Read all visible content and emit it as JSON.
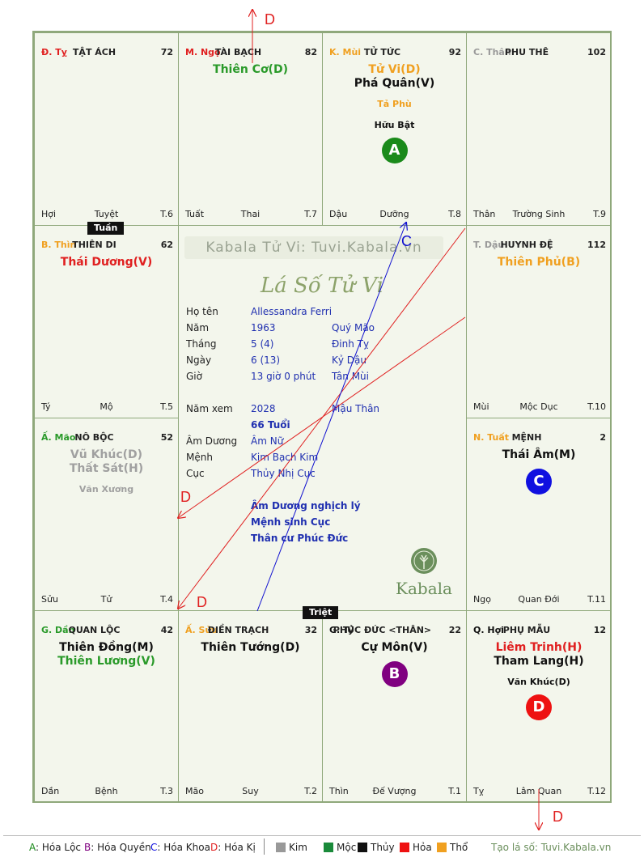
{
  "cells": {
    "ty": {
      "chi": "Đ. Tỵ",
      "chi_color": "#e02020",
      "name": "TẬT ÁCH",
      "num": "72",
      "stars": [],
      "minors": [],
      "bl": "Hợi",
      "bm": "Tuyệt",
      "br": "T.6"
    },
    "ngo": {
      "chi": "M. Ngọ",
      "chi_color": "#e02020",
      "name": "TÀI BẠCH",
      "num": "82",
      "stars": [
        {
          "text": "Thiên Cơ(D)",
          "color": "#2a9a2a"
        }
      ],
      "minors": [],
      "bl": "Tuất",
      "bm": "Thai",
      "br": "T.7"
    },
    "mui": {
      "chi": "K. Mùi",
      "chi_color": "#f0a020",
      "name": "TỬ TỨC",
      "num": "92",
      "stars": [
        {
          "text": "Tử Vi(D)",
          "color": "#f0a020"
        },
        {
          "text": "Phá Quân(V)",
          "color": "#111111"
        }
      ],
      "minors": [
        {
          "text": "Tả Phù",
          "color": "#f0a020"
        },
        {
          "text": "Hữu Bật",
          "color": "#111111"
        }
      ],
      "badge": {
        "text": "A",
        "color": "#1a8a1a"
      },
      "bl": "Dậu",
      "bm": "Dưỡng",
      "br": "T.8"
    },
    "than": {
      "chi": "C. Thân",
      "chi_color": "#999999",
      "name": "PHU THÊ",
      "num": "102",
      "stars": [],
      "minors": [],
      "bl": "Thân",
      "bm": "Trường Sinh",
      "br": "T.9"
    },
    "thin": {
      "chi": "B. Thìn",
      "chi_color": "#f0a020",
      "name": "THIÊN DI",
      "num": "62",
      "stars": [
        {
          "text": "Thái Dương(V)",
          "color": "#e02020"
        }
      ],
      "minors": [],
      "bl": "Tý",
      "bm": "Mộ",
      "br": "T.5"
    },
    "dau": {
      "chi": "T. Dậu",
      "chi_color": "#999999",
      "name": "HUYNH ĐỆ",
      "num": "112",
      "stars": [
        {
          "text": "Thiên Phủ(B)",
          "color": "#f0a020"
        }
      ],
      "minors": [],
      "bl": "Mùi",
      "bm": "Mộc Dục",
      "br": "T.10"
    },
    "mao": {
      "chi": "Ấ. Mão",
      "chi_color": "#2a9a2a",
      "name": "NÔ BỘC",
      "num": "52",
      "stars": [
        {
          "text": "Vũ Khúc(D)",
          "color": "#a0a0a0"
        },
        {
          "text": "Thất Sát(H)",
          "color": "#a0a0a0"
        }
      ],
      "minors": [
        {
          "text": "Văn Xương",
          "color": "#a0a0a0"
        }
      ],
      "bl": "Sửu",
      "bm": "Tử",
      "br": "T.4"
    },
    "tuat": {
      "chi": "N. Tuất",
      "chi_color": "#f0a020",
      "name": "MỆNH",
      "num": "2",
      "stars": [
        {
          "text": "Thái Âm(M)",
          "color": "#111111"
        }
      ],
      "minors": [],
      "badge": {
        "text": "C",
        "color": "#1010e0"
      },
      "bl": "Ngọ",
      "bm": "Quan Đới",
      "br": "T.11"
    },
    "dan": {
      "chi": "G. Dần",
      "chi_color": "#2a9a2a",
      "name": "QUAN LỘC",
      "num": "42",
      "stars": [
        {
          "text": "Thiên Đồng(M)",
          "color": "#111111"
        },
        {
          "text": "Thiên Lương(V)",
          "color": "#2a9a2a"
        }
      ],
      "minors": [],
      "bl": "Dần",
      "bm": "Bệnh",
      "br": "T.3"
    },
    "suu": {
      "chi": "Ấ. Sửu",
      "chi_color": "#f0a020",
      "name": "ĐIỀN TRẠCH",
      "num": "32",
      "stars": [
        {
          "text": "Thiên Tướng(D)",
          "color": "#111111"
        }
      ],
      "minors": [],
      "bl": "Mão",
      "bm": "Suy",
      "br": "T.2"
    },
    "ty2": {
      "chi": "G. Tý",
      "chi_color": "#111111",
      "name": "PHÚC ĐỨC <THÂN>",
      "num": "22",
      "stars": [
        {
          "text": "Cự Môn(V)",
          "color": "#111111"
        }
      ],
      "minors": [],
      "badge": {
        "text": "B",
        "color": "#800080"
      },
      "bl": "Thìn",
      "bm": "Đế Vượng",
      "br": "T.1"
    },
    "hoi": {
      "chi": "Q. Hợi",
      "chi_color": "#111111",
      "name": "PHỤ MẪU",
      "num": "12",
      "stars": [
        {
          "text": "Liêm Trinh(H)",
          "color": "#e02020"
        },
        {
          "text": "Tham Lang(H)",
          "color": "#111111"
        }
      ],
      "minors": [
        {
          "text": "Văn Khúc(D)",
          "color": "#111111"
        }
      ],
      "badge": {
        "text": "D",
        "color": "#ee1111"
      },
      "bl": "Tỵ",
      "bm": "Lâm Quan",
      "br": "T.12"
    }
  },
  "labels": {
    "tuan": "Tuần",
    "triet": "Triệt"
  },
  "center": {
    "watermark": "Kabala Tử Vi: Tuvi.Kabala.vn",
    "title": "Lá Số Tử Vi",
    "rows": [
      {
        "label": "Họ tên",
        "v1": "Allessandra Ferri",
        "v2": ""
      },
      {
        "label": "Năm",
        "v1": "1963",
        "v2": "Quý Mão"
      },
      {
        "label": "Tháng",
        "v1": "5  (4)",
        "v2": "Đinh Tỵ"
      },
      {
        "label": "Ngày",
        "v1": "6  (13)",
        "v2": "Kỷ Dậu"
      },
      {
        "label": "Giờ",
        "v1": "13 giờ 0 phút",
        "v2": "Tân Mùi"
      }
    ],
    "nam_xem": {
      "label": "Năm xem",
      "v1": "2028",
      "v2": "Mậu Thân"
    },
    "tuoi": "66 Tuổi",
    "rows2": [
      {
        "label": "Âm Dương",
        "v1": "Âm Nữ"
      },
      {
        "label": "Mệnh",
        "v1": "Kim Bạch Kim"
      },
      {
        "label": "Cục",
        "v1": "Thủy Nhị Cục"
      }
    ],
    "notes": [
      "Âm Dương nghịch lý",
      "Mệnh sinh Cục",
      "Thân cư Phúc Đức"
    ],
    "logo": "Kabala"
  },
  "arrows": {
    "d": "D",
    "c": "C"
  },
  "legend": {
    "hoa": [
      {
        "k": "A",
        "t": ": Hóa Lộc",
        "c": "#1a8a1a"
      },
      {
        "k": "B",
        "t": ": Hóa Quyền",
        "c": "#800080"
      },
      {
        "k": "C",
        "t": ": Hóa Khoa",
        "c": "#1010e0"
      },
      {
        "k": "D",
        "t": ": Hóa Kị",
        "c": "#e02020"
      }
    ],
    "elements": [
      {
        "t": "Kim",
        "c": "#999999"
      },
      {
        "t": "Mộc",
        "c": "#1a8a3a"
      },
      {
        "t": "Thủy",
        "c": "#111111"
      },
      {
        "t": "Hỏa",
        "c": "#ee1111"
      },
      {
        "t": "Thổ",
        "c": "#f0a020"
      }
    ],
    "site": "Tạo lá số: Tuvi.Kabala.vn"
  }
}
